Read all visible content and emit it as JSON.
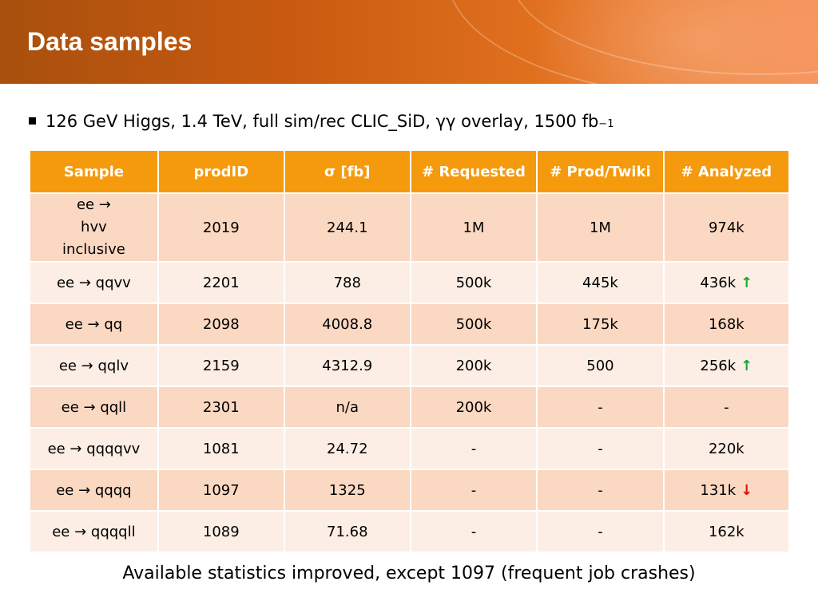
{
  "slide": {
    "title": "Data samples",
    "bullet": "126 GeV Higgs, 1.4 TeV, full sim/rec CLIC_SiD, γγ overlay, 1500 fb",
    "bullet_sup": "−1",
    "footer": "Available statistics improved, except 1097 (frequent job crashes)"
  },
  "table": {
    "headers": [
      "Sample",
      "prodID",
      "σ [fb]",
      "# Requested",
      "# Prod/Twiki",
      "# Analyzed"
    ],
    "rows": [
      {
        "sample": "ee → hvv inclusive",
        "prodid": "2019",
        "sigma": "244.1",
        "requested": "1M",
        "prod": "1M",
        "analyzed": "974k",
        "trend": ""
      },
      {
        "sample": "ee → qqvv",
        "prodid": "2201",
        "sigma": "788",
        "requested": "500k",
        "prod": "445k",
        "analyzed": "436k",
        "trend": "up"
      },
      {
        "sample": "ee → qq",
        "prodid": "2098",
        "sigma": "4008.8",
        "requested": "500k",
        "prod": "175k",
        "analyzed": "168k",
        "trend": ""
      },
      {
        "sample": "ee → qqlv",
        "prodid": "2159",
        "sigma": "4312.9",
        "requested": "200k",
        "prod": "500",
        "analyzed": "256k",
        "trend": "up"
      },
      {
        "sample": "ee → qqll",
        "prodid": "2301",
        "sigma": "n/a",
        "requested": "200k",
        "prod": "-",
        "analyzed": "-",
        "trend": ""
      },
      {
        "sample": "ee → qqqqvv",
        "prodid": "1081",
        "sigma": "24.72",
        "requested": "-",
        "prod": "-",
        "analyzed": "220k",
        "trend": ""
      },
      {
        "sample": "ee → qqqq",
        "prodid": "1097",
        "sigma": "1325",
        "requested": "-",
        "prod": "-",
        "analyzed": "131k",
        "trend": "down"
      },
      {
        "sample": "ee → qqqqll",
        "prodid": "1089",
        "sigma": "71.68",
        "requested": "-",
        "prod": "-",
        "analyzed": "162k",
        "trend": ""
      }
    ]
  },
  "icons": {
    "up": "↑",
    "down": "↓",
    "up_color": "#1aa52e",
    "down_color": "#e01010"
  },
  "colors": {
    "header_bar": "#c85a10",
    "table_header": "#f59a0c",
    "row_odd": "#fbd8c2",
    "row_even": "#fdeee5"
  }
}
